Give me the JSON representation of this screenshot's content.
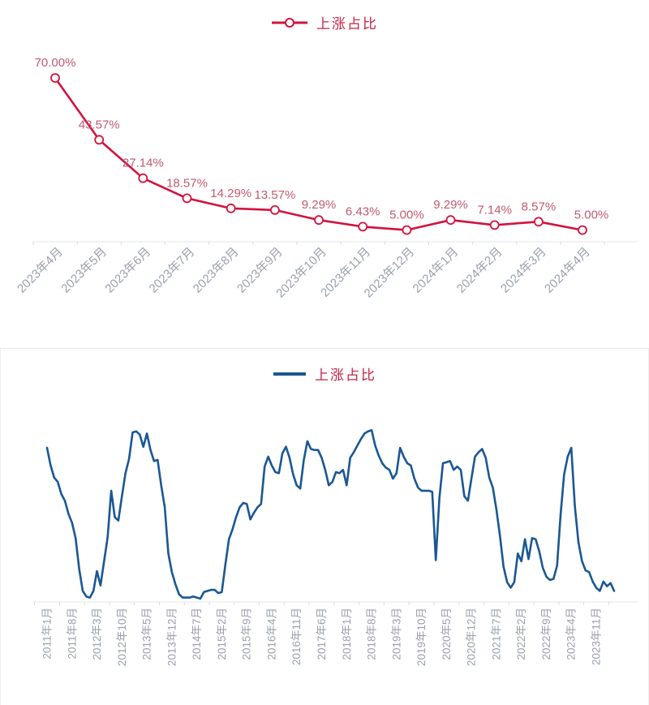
{
  "colors": {
    "recent_line": "#d2123e",
    "recent_value_labels": "#c15a70",
    "history_line": "#1a5793",
    "legend_text": "#c22447",
    "axis_labels": "#9aa1ab"
  },
  "chart_data": [
    {
      "id": "recent-13-months",
      "type": "line",
      "title": "",
      "legend_label": "上涨占比",
      "series_name": "上涨占比",
      "legend_position": "top-center",
      "grid": false,
      "marker": "open-circle",
      "ylim": [
        0,
        85
      ],
      "categories": [
        "2023年4月",
        "2023年5月",
        "2023年6月",
        "2023年7月",
        "2023年8月",
        "2023年9月",
        "2023年10月",
        "2023年11月",
        "2023年12月",
        "2024年1月",
        "2024年2月",
        "2024年3月",
        "2024年4月"
      ],
      "values": [
        70.0,
        43.57,
        27.14,
        18.57,
        14.29,
        13.57,
        9.29,
        6.43,
        5.0,
        9.29,
        7.14,
        8.57,
        5.0
      ],
      "value_labels": [
        "70.00%",
        "43.57%",
        "27.14%",
        "18.57%",
        "14.29%",
        "13.57%",
        "9.29%",
        "6.43%",
        "5.00%",
        "9.29%",
        "7.14%",
        "8.57%",
        "5.00%"
      ]
    },
    {
      "id": "history-monthly-2011-2024",
      "type": "line",
      "title": "",
      "legend_label": "上涨占比",
      "series_name": "上涨占比",
      "legend_position": "top-center",
      "grid": false,
      "marker": "none",
      "ylim": [
        0,
        92
      ],
      "x_start": "2011年1月",
      "x_end": "2024年4月",
      "x_tick_interval_months": 7,
      "x_tick_labels": [
        "2011年1月",
        "2011年8月",
        "2012年3月",
        "2012年10月",
        "2013年5月",
        "2013年12月",
        "2014年7月",
        "2015年2月",
        "2015年9月",
        "2016年4月",
        "2016年11月",
        "2017年6月",
        "2018年1月",
        "2018年8月",
        "2019年3月",
        "2019年10月",
        "2020年5月",
        "2020年12月",
        "2021年7月",
        "2022年2月",
        "2022年9月",
        "2023年4月",
        "2023年11月"
      ],
      "values": [
        70,
        62,
        56.5,
        54.5,
        49,
        46,
        40,
        36,
        29,
        15,
        5,
        2.5,
        2,
        5,
        14,
        7.5,
        18.5,
        29.5,
        50.5,
        38.5,
        37,
        48,
        58.5,
        65,
        77,
        77.5,
        76,
        70.5,
        76.5,
        69,
        64,
        64.5,
        53,
        43,
        22,
        13.5,
        8,
        3.5,
        2,
        2,
        2,
        2.5,
        2,
        1.5,
        4.5,
        5,
        5.5,
        5.5,
        4,
        4.5,
        17,
        28.5,
        33,
        38.5,
        43,
        45,
        44.5,
        37.5,
        40.5,
        43,
        44.5,
        61.5,
        66,
        62,
        59,
        58.5,
        67.5,
        70.5,
        65.5,
        58,
        53,
        51.5,
        64.5,
        73,
        69.5,
        69,
        69,
        65.5,
        60,
        53,
        54.5,
        59,
        58.5,
        60,
        53,
        65.5,
        68,
        71,
        74,
        76.5,
        77.5,
        78,
        71,
        66.5,
        63,
        61,
        60,
        56,
        58.5,
        70,
        66,
        63,
        62,
        56,
        52,
        50.5,
        50.5,
        50.5,
        50,
        19,
        47,
        63,
        63.5,
        64,
        60,
        61.5,
        60,
        48,
        46,
        56,
        66,
        68,
        69.5,
        65.5,
        56.5,
        52,
        42,
        30,
        16,
        9,
        6.5,
        9,
        22,
        18.5,
        28.5,
        19.5,
        29,
        28.5,
        23,
        15.5,
        11.5,
        10,
        10.5,
        16.5,
        40,
        58,
        66,
        70,
        43.57,
        27.14,
        18.57,
        14.29,
        13.57,
        9.29,
        6.43,
        5,
        9.29,
        7.14,
        8.57,
        5
      ]
    }
  ]
}
